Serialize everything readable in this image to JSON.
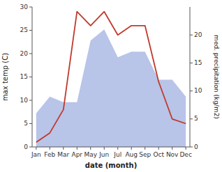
{
  "chart_data": {
    "type": "line",
    "categories": [
      "Jan",
      "Feb",
      "Mar",
      "Apr",
      "May",
      "Jun",
      "Jul",
      "Aug",
      "Sep",
      "Oct",
      "Nov",
      "Dec"
    ],
    "series": [
      {
        "name": "precip",
        "type": "area",
        "axis": "y2",
        "color": "#b8c4e8",
        "values": [
          6,
          9,
          8,
          8,
          19,
          21,
          16,
          17,
          17,
          12,
          12,
          9
        ]
      },
      {
        "name": "temp",
        "type": "line",
        "color": "#c0392b",
        "values": [
          1,
          3,
          8,
          29,
          26,
          29,
          24,
          26,
          26,
          14,
          6,
          5
        ]
      }
    ],
    "xlabel": "date (month)",
    "ylabel": "max temp (C)",
    "y2label": "med. precipitation (kg/m2)",
    "ylim": [
      0,
      30
    ],
    "yticks": [
      0,
      5,
      10,
      15,
      20,
      25,
      30
    ],
    "y2lim": [
      0,
      25
    ],
    "y2ticks": [
      0,
      5,
      10,
      15,
      20
    ],
    "grid": false
  }
}
